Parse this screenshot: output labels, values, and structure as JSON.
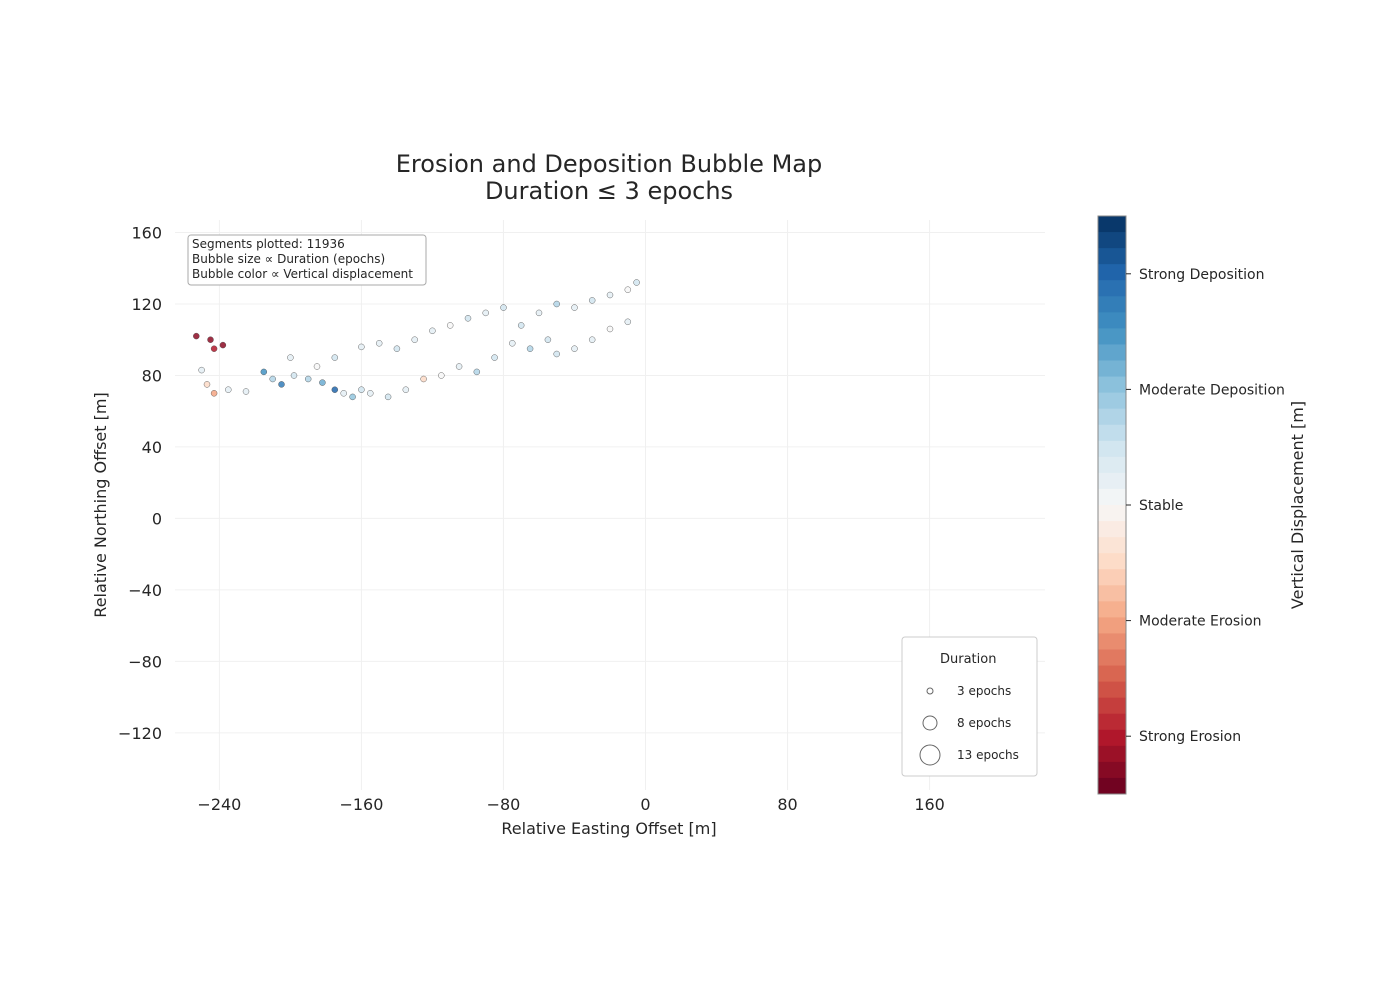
{
  "chart_data": {
    "type": "scatter",
    "title": [
      "Erosion and Deposition Bubble Map",
      "Duration ≤ 3 epochs"
    ],
    "xlabel": "Relative Easting Offset [m]",
    "ylabel": "Relative Northing Offset [m]",
    "xlim": [
      -265,
      225
    ],
    "ylim": [
      -152,
      167
    ],
    "xticks": [
      -240,
      -160,
      -80,
      0,
      80,
      160
    ],
    "xtick_labels": [
      "−240",
      "−160",
      "−80",
      "0",
      "80",
      "160"
    ],
    "yticks": [
      -120,
      -80,
      -40,
      0,
      40,
      80,
      120,
      160
    ],
    "ytick_labels": [
      "−120",
      "−80",
      "−40",
      "0",
      "40",
      "80",
      "120",
      "160"
    ],
    "grid": true,
    "info_box": {
      "position": "top-left",
      "lines": [
        "Segments plotted: 11936",
        "Bubble size ∝ Duration (epochs)",
        "Bubble color ∝ Vertical displacement"
      ]
    },
    "size_legend": {
      "position": "lower-right",
      "title": "Duration",
      "entries": [
        {
          "label": "3 epochs",
          "epochs": 3
        },
        {
          "label": "8 epochs",
          "epochs": 8
        },
        {
          "label": "13 epochs",
          "epochs": 13
        }
      ]
    },
    "colorbar": {
      "label": "Vertical Displacement [m]",
      "colormap": "RdBu (discrete)",
      "ticks": [
        {
          "label": "Strong Deposition",
          "value": 0.8
        },
        {
          "label": "Moderate Deposition",
          "value": 0.4
        },
        {
          "label": "Stable",
          "value": 0.0
        },
        {
          "label": "Moderate Erosion",
          "value": -0.4
        },
        {
          "label": "Strong Erosion",
          "value": -0.8
        }
      ],
      "range": [
        -1.0,
        1.0
      ],
      "colors": [
        "#67001f",
        "#b2182b",
        "#d6604d",
        "#f4a582",
        "#fddbc7",
        "#f7f7f7",
        "#d1e5f0",
        "#92c5de",
        "#4393c3",
        "#2166ac",
        "#053061"
      ]
    },
    "series": [
      {
        "points": [
          [
            -253,
            102,
            -0.9
          ],
          [
            -245,
            100,
            -0.9
          ],
          [
            -243,
            95,
            -0.8
          ],
          [
            -238,
            97,
            -0.9
          ],
          [
            -250,
            83,
            0.1
          ],
          [
            -247,
            75,
            -0.2
          ],
          [
            -243,
            70,
            -0.4
          ],
          [
            -235,
            72,
            0.1
          ],
          [
            -225,
            71,
            0.1
          ],
          [
            -215,
            82,
            0.6
          ],
          [
            -210,
            78,
            0.3
          ],
          [
            -205,
            75,
            0.7
          ],
          [
            -198,
            80,
            0.2
          ],
          [
            -190,
            78,
            0.3
          ],
          [
            -182,
            76,
            0.5
          ],
          [
            -175,
            72,
            0.8
          ],
          [
            -170,
            70,
            0.1
          ],
          [
            -165,
            68,
            0.4
          ],
          [
            -160,
            72,
            0.2
          ],
          [
            -155,
            70,
            0.1
          ],
          [
            -145,
            68,
            0.2
          ],
          [
            -135,
            72,
            0.1
          ],
          [
            -125,
            78,
            -0.2
          ],
          [
            -115,
            80,
            0.0
          ],
          [
            -105,
            85,
            0.1
          ],
          [
            -95,
            82,
            0.3
          ],
          [
            -85,
            90,
            0.2
          ],
          [
            -75,
            98,
            0.1
          ],
          [
            -65,
            95,
            0.3
          ],
          [
            -55,
            100,
            0.2
          ],
          [
            -50,
            92,
            0.2
          ],
          [
            -40,
            95,
            0.1
          ],
          [
            -30,
            100,
            0.1
          ],
          [
            -20,
            106,
            0.0
          ],
          [
            -10,
            110,
            0.1
          ],
          [
            -70,
            108,
            0.2
          ],
          [
            -60,
            115,
            0.1
          ],
          [
            -50,
            120,
            0.3
          ],
          [
            -40,
            118,
            0.1
          ],
          [
            -30,
            122,
            0.2
          ],
          [
            -20,
            125,
            0.1
          ],
          [
            -10,
            128,
            0.0
          ],
          [
            -5,
            132,
            0.2
          ],
          [
            -150,
            98,
            0.1
          ],
          [
            -140,
            95,
            0.2
          ],
          [
            -130,
            100,
            0.1
          ],
          [
            -120,
            105,
            0.1
          ],
          [
            -110,
            108,
            0.0
          ],
          [
            -100,
            112,
            0.2
          ],
          [
            -90,
            115,
            0.1
          ],
          [
            -80,
            118,
            0.2
          ],
          [
            -160,
            96,
            0.1
          ],
          [
            -175,
            90,
            0.2
          ],
          [
            -185,
            85,
            0.0
          ],
          [
            -200,
            90,
            0.1
          ]
        ]
      }
    ]
  }
}
